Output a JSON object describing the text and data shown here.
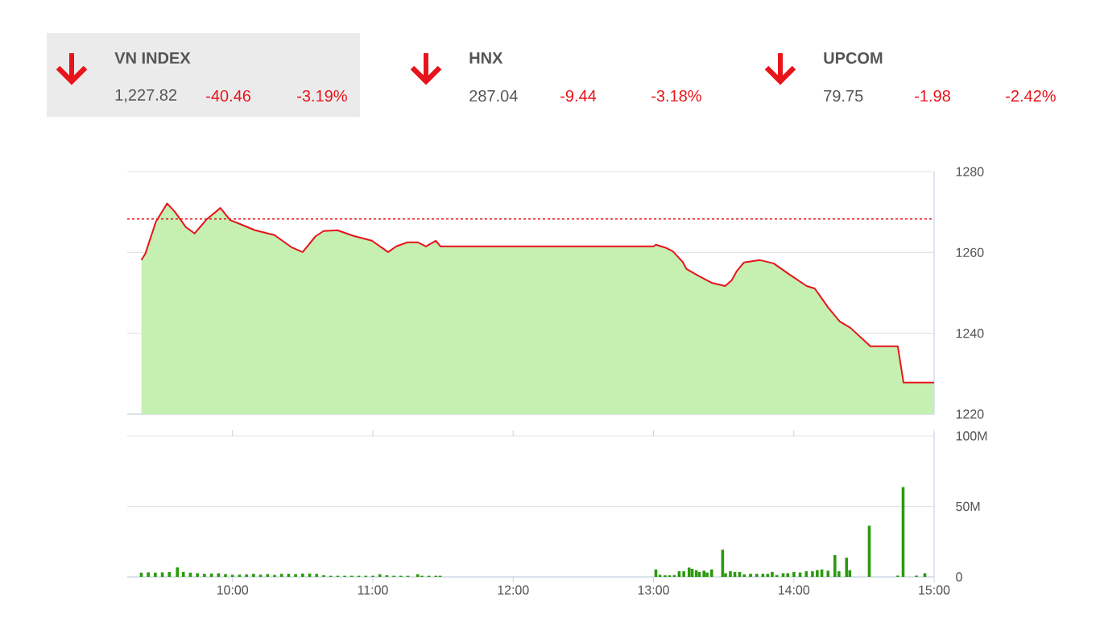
{
  "chart_data": [
    {
      "type": "other",
      "annotations": [
        "VN INDEX",
        "1,227.82",
        "-40.46",
        "-3.19%",
        "HNX",
        "287.04",
        "-9.44",
        "-3.18%",
        "UPCOM",
        "79.75",
        "-1.98",
        "-2.42%"
      ]
    },
    {
      "type": "area",
      "xlim": [
        9.25,
        15
      ],
      "ylim": [
        1220,
        1280
      ],
      "yticks": [
        1220,
        1240,
        1260,
        1280
      ],
      "grid": "y",
      "tick_labels": "y",
      "x": [
        9.351,
        9.379,
        9.454,
        9.534,
        9.586,
        9.632,
        9.667,
        9.73,
        9.816,
        9.914,
        9.983,
        10.057,
        10.161,
        10.299,
        10.42,
        10.5,
        10.592,
        10.649,
        10.747,
        10.862,
        10.994,
        11.109,
        11.167,
        11.247,
        11.322,
        11.379,
        11.448,
        11.483,
        13.0,
        13.017,
        13.092,
        13.138,
        13.207,
        13.236,
        13.316,
        13.414,
        13.511,
        13.557,
        13.592,
        13.644,
        13.759,
        13.856,
        13.971,
        14.092,
        14.149,
        14.247,
        14.328,
        14.402,
        14.546,
        14.741,
        14.782,
        15.0
      ],
      "series": [
        {
          "type": "area",
          "color": "#c6efb2",
          "values": [
            1258.1,
            1259.7,
            1267.6,
            1272.1,
            1270.2,
            1268.0,
            1266.3,
            1264.7,
            1268.2,
            1271.0,
            1268.0,
            1267.0,
            1265.5,
            1264.3,
            1261.3,
            1260.1,
            1264.0,
            1265.3,
            1265.5,
            1264.1,
            1262.9,
            1260.1,
            1261.5,
            1262.5,
            1262.5,
            1261.5,
            1262.9,
            1261.5,
            1261.5,
            1261.9,
            1261.1,
            1260.3,
            1257.7,
            1255.9,
            1254.3,
            1252.5,
            1251.7,
            1253.1,
            1255.3,
            1257.5,
            1258.1,
            1257.3,
            1254.5,
            1251.7,
            1251.1,
            1246.3,
            1242.9,
            1241.4,
            1236.8,
            1236.8,
            1227.8,
            1227.8
          ]
        },
        {
          "type": "line",
          "color": "#e8141b",
          "values": [
            1258.1,
            1259.7,
            1267.6,
            1272.1,
            1270.2,
            1268.0,
            1266.3,
            1264.7,
            1268.2,
            1271.0,
            1268.0,
            1267.0,
            1265.5,
            1264.3,
            1261.3,
            1260.1,
            1264.0,
            1265.3,
            1265.5,
            1264.1,
            1262.9,
            1260.1,
            1261.5,
            1262.5,
            1262.5,
            1261.5,
            1262.9,
            1261.5,
            1261.5,
            1261.9,
            1261.1,
            1260.3,
            1257.7,
            1255.9,
            1254.3,
            1252.5,
            1251.7,
            1253.1,
            1255.3,
            1257.5,
            1258.1,
            1257.3,
            1254.5,
            1251.7,
            1251.1,
            1246.3,
            1242.9,
            1241.4,
            1236.8,
            1236.8,
            1227.8,
            1227.8
          ]
        }
      ],
      "ref_lines": [
        {
          "axis": "y",
          "value": 1268.28,
          "color": "#e8141b",
          "line_style": "dashed"
        }
      ]
    },
    {
      "type": "bar",
      "xlim": [
        9.25,
        15
      ],
      "ylim": [
        0,
        100
      ],
      "grid": "y",
      "xticks": [
        {
          "value": 10,
          "label": "10:00"
        },
        {
          "value": 11,
          "label": "11:00"
        },
        {
          "value": 12,
          "label": "12:00"
        },
        {
          "value": 13,
          "label": "13:00"
        },
        {
          "value": 14,
          "label": "14:00"
        },
        {
          "value": 15,
          "label": "15:00"
        }
      ],
      "yticks": [
        {
          "value": 0,
          "label": "0"
        },
        {
          "value": 50,
          "label": "50M"
        },
        {
          "value": 100,
          "label": "100M"
        }
      ],
      "x": [
        9.35,
        9.4,
        9.45,
        9.5,
        9.55,
        9.607,
        9.65,
        9.7,
        9.75,
        9.8,
        9.85,
        9.9,
        9.95,
        10.0,
        10.05,
        10.1,
        10.15,
        10.2,
        10.25,
        10.3,
        10.35,
        10.4,
        10.45,
        10.5,
        10.55,
        10.6,
        10.65,
        10.7,
        10.75,
        10.8,
        10.85,
        10.9,
        10.95,
        11.0,
        11.05,
        11.1,
        11.15,
        11.2,
        11.25,
        11.32,
        11.35,
        11.4,
        11.45,
        11.48,
        13.017,
        13.046,
        13.083,
        13.115,
        13.149,
        13.183,
        13.216,
        13.254,
        13.276,
        13.305,
        13.327,
        13.36,
        13.382,
        13.415,
        13.493,
        13.514,
        13.548,
        13.58,
        13.614,
        13.647,
        13.692,
        13.736,
        13.78,
        13.814,
        13.846,
        13.879,
        13.924,
        13.957,
        14.001,
        14.045,
        14.089,
        14.133,
        14.167,
        14.2,
        14.244,
        14.293,
        14.322,
        14.376,
        14.399,
        14.538,
        14.741,
        14.779,
        14.874,
        14.934
      ],
      "series": [
        {
          "color": "#2b9a0e",
          "values": [
            3.0,
            3.2,
            3.0,
            3.2,
            3.4,
            6.7,
            3.5,
            3.0,
            2.6,
            2.2,
            2.4,
            2.6,
            2.0,
            1.5,
            1.6,
            1.8,
            2.2,
            1.6,
            2.0,
            1.4,
            2.2,
            2.2,
            2.0,
            2.4,
            2.4,
            2.2,
            1.2,
            0.8,
            0.8,
            0.8,
            0.8,
            0.8,
            0.8,
            0.8,
            1.9,
            1.2,
            0.8,
            0.8,
            0.8,
            1.9,
            0.8,
            0.8,
            0.8,
            0.8,
            5.3,
            1.5,
            1.1,
            1.1,
            1.3,
            4.0,
            4.0,
            6.6,
            5.7,
            4.8,
            3.5,
            4.4,
            3.1,
            5.3,
            19.3,
            2.6,
            4.0,
            3.5,
            3.5,
            1.8,
            2.2,
            2.2,
            2.2,
            2.2,
            3.5,
            1.3,
            2.6,
            2.6,
            3.5,
            3.1,
            4.0,
            4.0,
            4.8,
            5.3,
            4.4,
            15.4,
            4.0,
            13.6,
            4.8,
            36.3,
            0.9,
            63.7,
            0.9,
            2.6
          ]
        }
      ]
    }
  ]
}
